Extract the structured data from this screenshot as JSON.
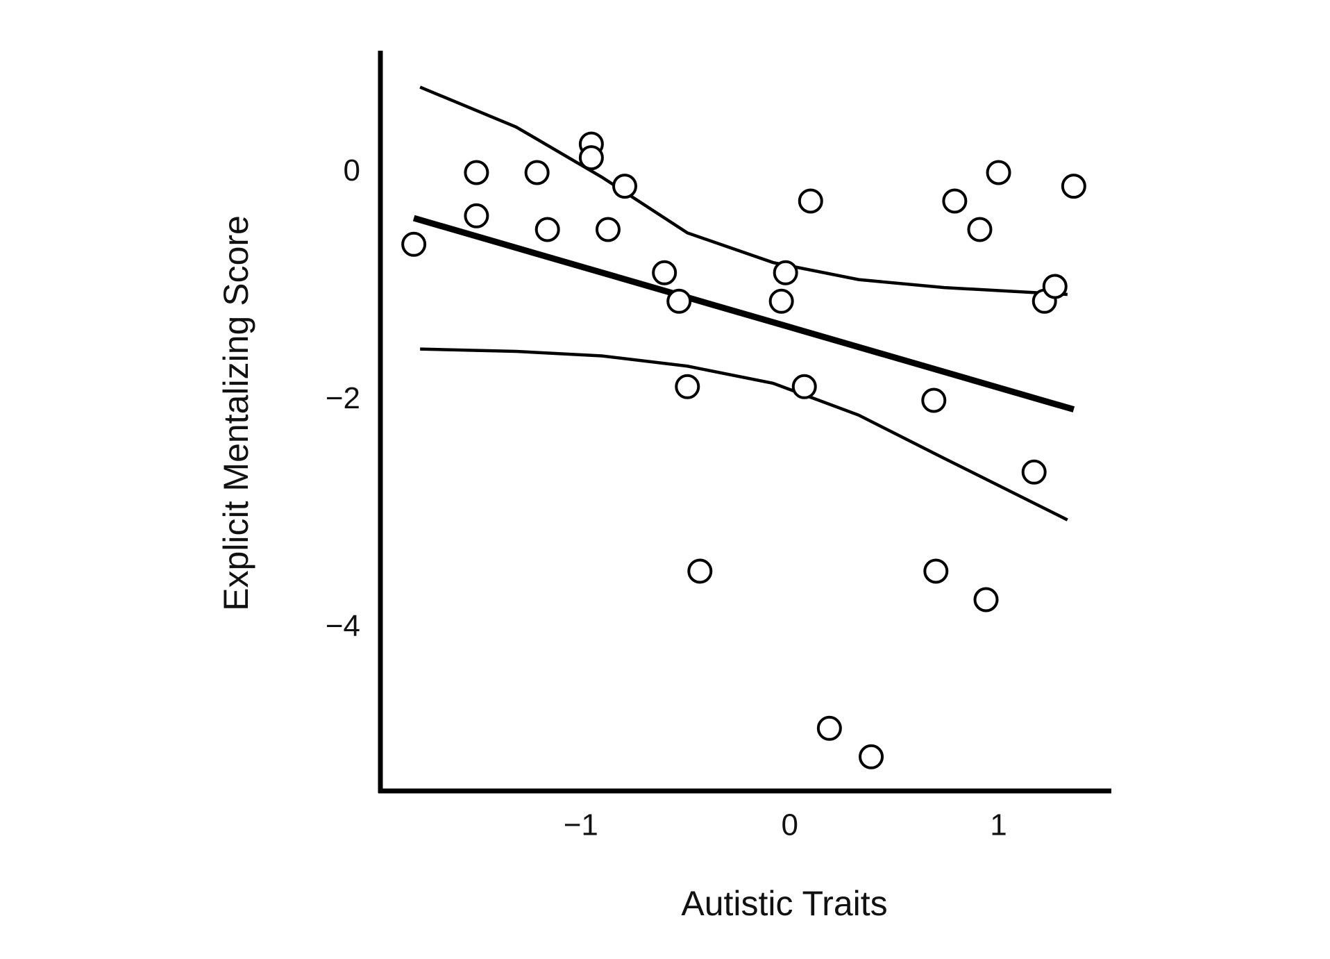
{
  "chart_data": {
    "type": "scatter",
    "xlabel": "Autistic Traits",
    "ylabel": "Explicit Mentalizing Score",
    "xlim": [
      -1.96,
      1.54
    ],
    "ylim": [
      -5.43,
      1.07
    ],
    "xticks": [
      {
        "value": -1,
        "label": "−1"
      },
      0,
      1
    ],
    "yticks": [
      0,
      {
        "value": -2,
        "label": "−2"
      },
      {
        "value": -4,
        "label": "−4"
      }
    ],
    "color": "#000000",
    "points": {
      "x": [
        -1.8,
        -1.5,
        -1.5,
        -1.21,
        -1.16,
        -0.95,
        -0.95,
        -0.87,
        -0.79,
        -0.6,
        -0.53,
        -0.49,
        -0.43,
        -0.02,
        -0.04,
        0.1,
        0.07,
        0.19,
        0.39,
        0.69,
        0.7,
        0.79,
        0.91,
        0.94,
        1.0,
        1.17,
        1.22,
        1.27,
        1.36
      ],
      "y": [
        -0.63,
        0,
        -0.38,
        0,
        -0.5,
        0.25,
        0.13,
        -0.5,
        -0.12,
        -0.88,
        -1.13,
        -1.88,
        -3.5,
        -0.88,
        -1.13,
        -0.25,
        -1.88,
        -4.88,
        -5.13,
        -2.0,
        -3.5,
        -0.25,
        -0.5,
        -3.75,
        0,
        -2.63,
        -1.13,
        -1.0,
        -0.12
      ]
    },
    "fit": {
      "x": [
        -1.8,
        1.36
      ],
      "y": [
        -0.4,
        -2.08
      ]
    },
    "ci_upper": {
      "x": [
        -1.77,
        -1.31,
        -0.9,
        -0.49,
        -0.08,
        0.33,
        0.74,
        1.33
      ],
      "y": [
        0.75,
        0.4,
        -0.04,
        -0.53,
        -0.79,
        -0.94,
        -1.01,
        -1.07
      ]
    },
    "ci_lower": {
      "x": [
        -1.77,
        -1.31,
        -0.9,
        -0.49,
        -0.08,
        0.33,
        0.74,
        1.33
      ],
      "y": [
        -1.55,
        -1.57,
        -1.61,
        -1.7,
        -1.85,
        -2.13,
        -2.51,
        -3.05
      ]
    }
  }
}
